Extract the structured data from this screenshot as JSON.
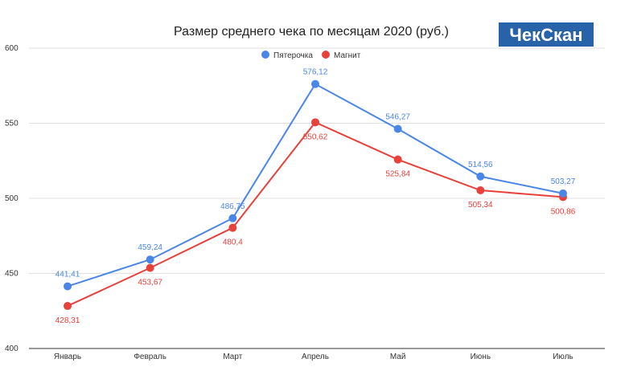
{
  "colors": {
    "series_1": "#4a86e8",
    "series_2": "#e8403a",
    "grid": "#e0e0e0",
    "logo_bg": "#2862a8"
  },
  "logo": {
    "text": "ЧекСкан"
  },
  "chart_data": {
    "type": "line",
    "title": "Размер среднего чека по месяцам 2020 (руб.)",
    "xlabel": "",
    "ylabel": "",
    "categories": [
      "Январь",
      "Февраль",
      "Март",
      "Апрель",
      "Май",
      "Июнь",
      "Июль"
    ],
    "series": [
      {
        "name": "Пятерочка",
        "values": [
          441.41,
          459.24,
          486.75,
          576.12,
          546.27,
          514.56,
          503.27
        ],
        "labels": [
          "441,41",
          "459,24",
          "486,75",
          "576,12",
          "546,27",
          "514,56",
          "503,27"
        ]
      },
      {
        "name": "Магнит",
        "values": [
          428.31,
          453.67,
          480.4,
          550.62,
          525.84,
          505.34,
          500.86
        ],
        "labels": [
          "428,31",
          "453,67",
          "480,4",
          "550,62",
          "525,84",
          "505,34",
          "500,86"
        ]
      }
    ],
    "ylim": [
      400,
      600
    ],
    "yticks": [
      "400",
      "450",
      "500",
      "550",
      "600"
    ],
    "grid": true,
    "legend": "top-center"
  }
}
